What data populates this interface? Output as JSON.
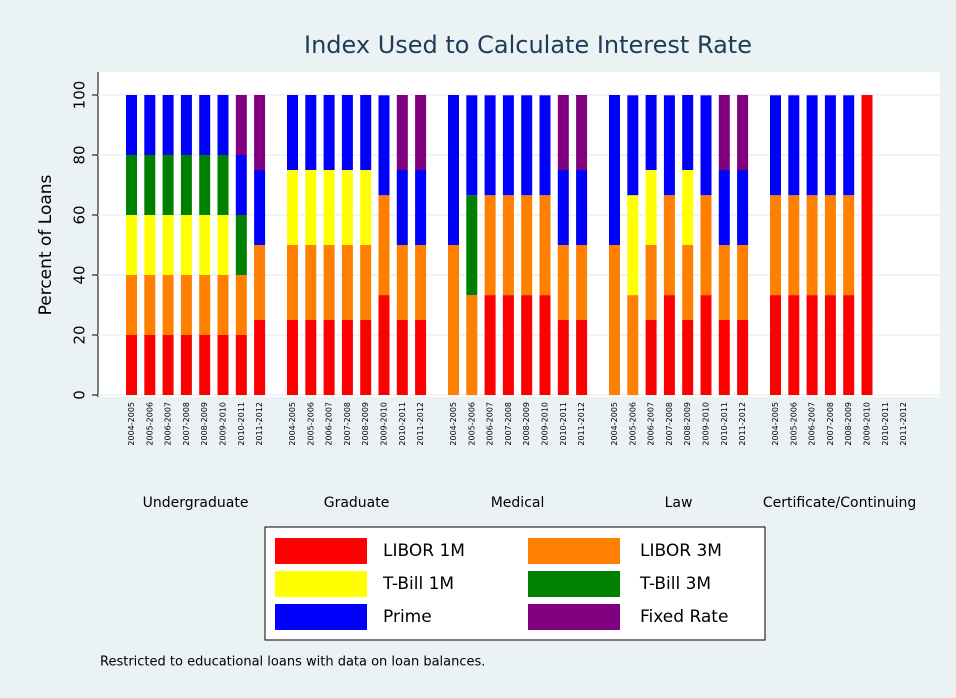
{
  "chart_data": {
    "type": "stacked-bar",
    "title": "Index Used to Calculate Interest Rate",
    "y_label": "Percent of Loans",
    "note": "Restricted to educational loans with data on loan balances.",
    "groups": [
      "Undergraduate",
      "Graduate",
      "Medical",
      "Law",
      "Certificate/Continuing"
    ],
    "categories": [
      "2004-2005",
      "2005-2006",
      "2006-2007",
      "2007-2008",
      "2008-2009",
      "2009-2010",
      "2010-2011",
      "2011-2012",
      "2004-2005",
      "2005-2006",
      "2006-2007",
      "2007-2008",
      "2008-2009",
      "2009-2010",
      "2010-2011",
      "2011-2012",
      "2004-2005",
      "2005-2006",
      "2006-2007",
      "2007-2008",
      "2008-2009",
      "2009-2010",
      "2010-2011",
      "2011-2012",
      "2004-2005",
      "2005-2006",
      "2006-2007",
      "2007-2008",
      "2008-2009",
      "2009-2010",
      "2010-2011",
      "2011-2012",
      "2004-2005",
      "2005-2006",
      "2006-2007",
      "2007-2008",
      "2008-2009",
      "2009-2010",
      "2010-2011",
      "2011-2012"
    ],
    "series": [
      {
        "name": "LIBOR 1M",
        "color": "#ff0000",
        "values": [
          20,
          20,
          20,
          20,
          20,
          20,
          20,
          25,
          25,
          25,
          25,
          25,
          25,
          33.3,
          25,
          25,
          0,
          0,
          33.3,
          33.3,
          33.3,
          33.3,
          25,
          25,
          0,
          0,
          25,
          33.3,
          25,
          33.3,
          25,
          25,
          33.3,
          33.3,
          33.3,
          33.3,
          33.3,
          100,
          null,
          null
        ]
      },
      {
        "name": "LIBOR 3M",
        "color": "#ff7f00",
        "values": [
          20,
          20,
          20,
          20,
          20,
          20,
          20,
          25,
          25,
          25,
          25,
          25,
          25,
          33.3,
          25,
          25,
          50,
          33.3,
          33.3,
          33.3,
          33.3,
          33.3,
          25,
          25,
          50,
          33.3,
          25,
          33.3,
          25,
          33.3,
          25,
          25,
          33.3,
          33.3,
          33.3,
          33.3,
          33.3,
          0,
          null,
          null
        ]
      },
      {
        "name": "T-Bill 1M",
        "color": "#ffff00",
        "values": [
          20,
          20,
          20,
          20,
          20,
          20,
          0,
          0,
          25,
          25,
          25,
          25,
          25,
          0,
          0,
          0,
          0,
          0,
          0,
          0,
          0,
          0,
          0,
          0,
          0,
          33.3,
          25,
          0,
          25,
          0,
          0,
          0,
          0,
          0,
          0,
          0,
          0,
          0,
          null,
          null
        ]
      },
      {
        "name": "T-Bill 3M",
        "color": "#008000",
        "values": [
          20,
          20,
          20,
          20,
          20,
          20,
          20,
          0,
          0,
          0,
          0,
          0,
          0,
          0,
          0,
          0,
          0,
          33.3,
          0,
          0,
          0,
          0,
          0,
          0,
          0,
          0,
          0,
          0,
          0,
          0,
          0,
          0,
          0,
          0,
          0,
          0,
          0,
          0,
          null,
          null
        ]
      },
      {
        "name": "Prime",
        "color": "#0000ff",
        "values": [
          20,
          20,
          20,
          20,
          20,
          20,
          20,
          25,
          25,
          25,
          25,
          25,
          25,
          33.3,
          25,
          25,
          50,
          33.3,
          33.3,
          33.3,
          33.3,
          33.3,
          25,
          25,
          50,
          33.3,
          25,
          33.3,
          25,
          33.3,
          25,
          25,
          33.3,
          33.3,
          33.3,
          33.3,
          33.3,
          0,
          null,
          null
        ]
      },
      {
        "name": "Fixed Rate",
        "color": "#800080",
        "values": [
          0,
          0,
          0,
          0,
          0,
          0,
          20,
          25,
          0,
          0,
          0,
          0,
          0,
          0,
          25,
          25,
          0,
          0,
          0,
          0,
          0,
          0,
          25,
          25,
          0,
          0,
          0,
          0,
          0,
          0,
          25,
          25,
          0,
          0,
          0,
          0,
          0,
          0,
          null,
          null
        ]
      }
    ],
    "ylim": [
      0,
      100
    ],
    "yticks": [
      0,
      20,
      40,
      60,
      80,
      100
    ],
    "grid": true
  }
}
